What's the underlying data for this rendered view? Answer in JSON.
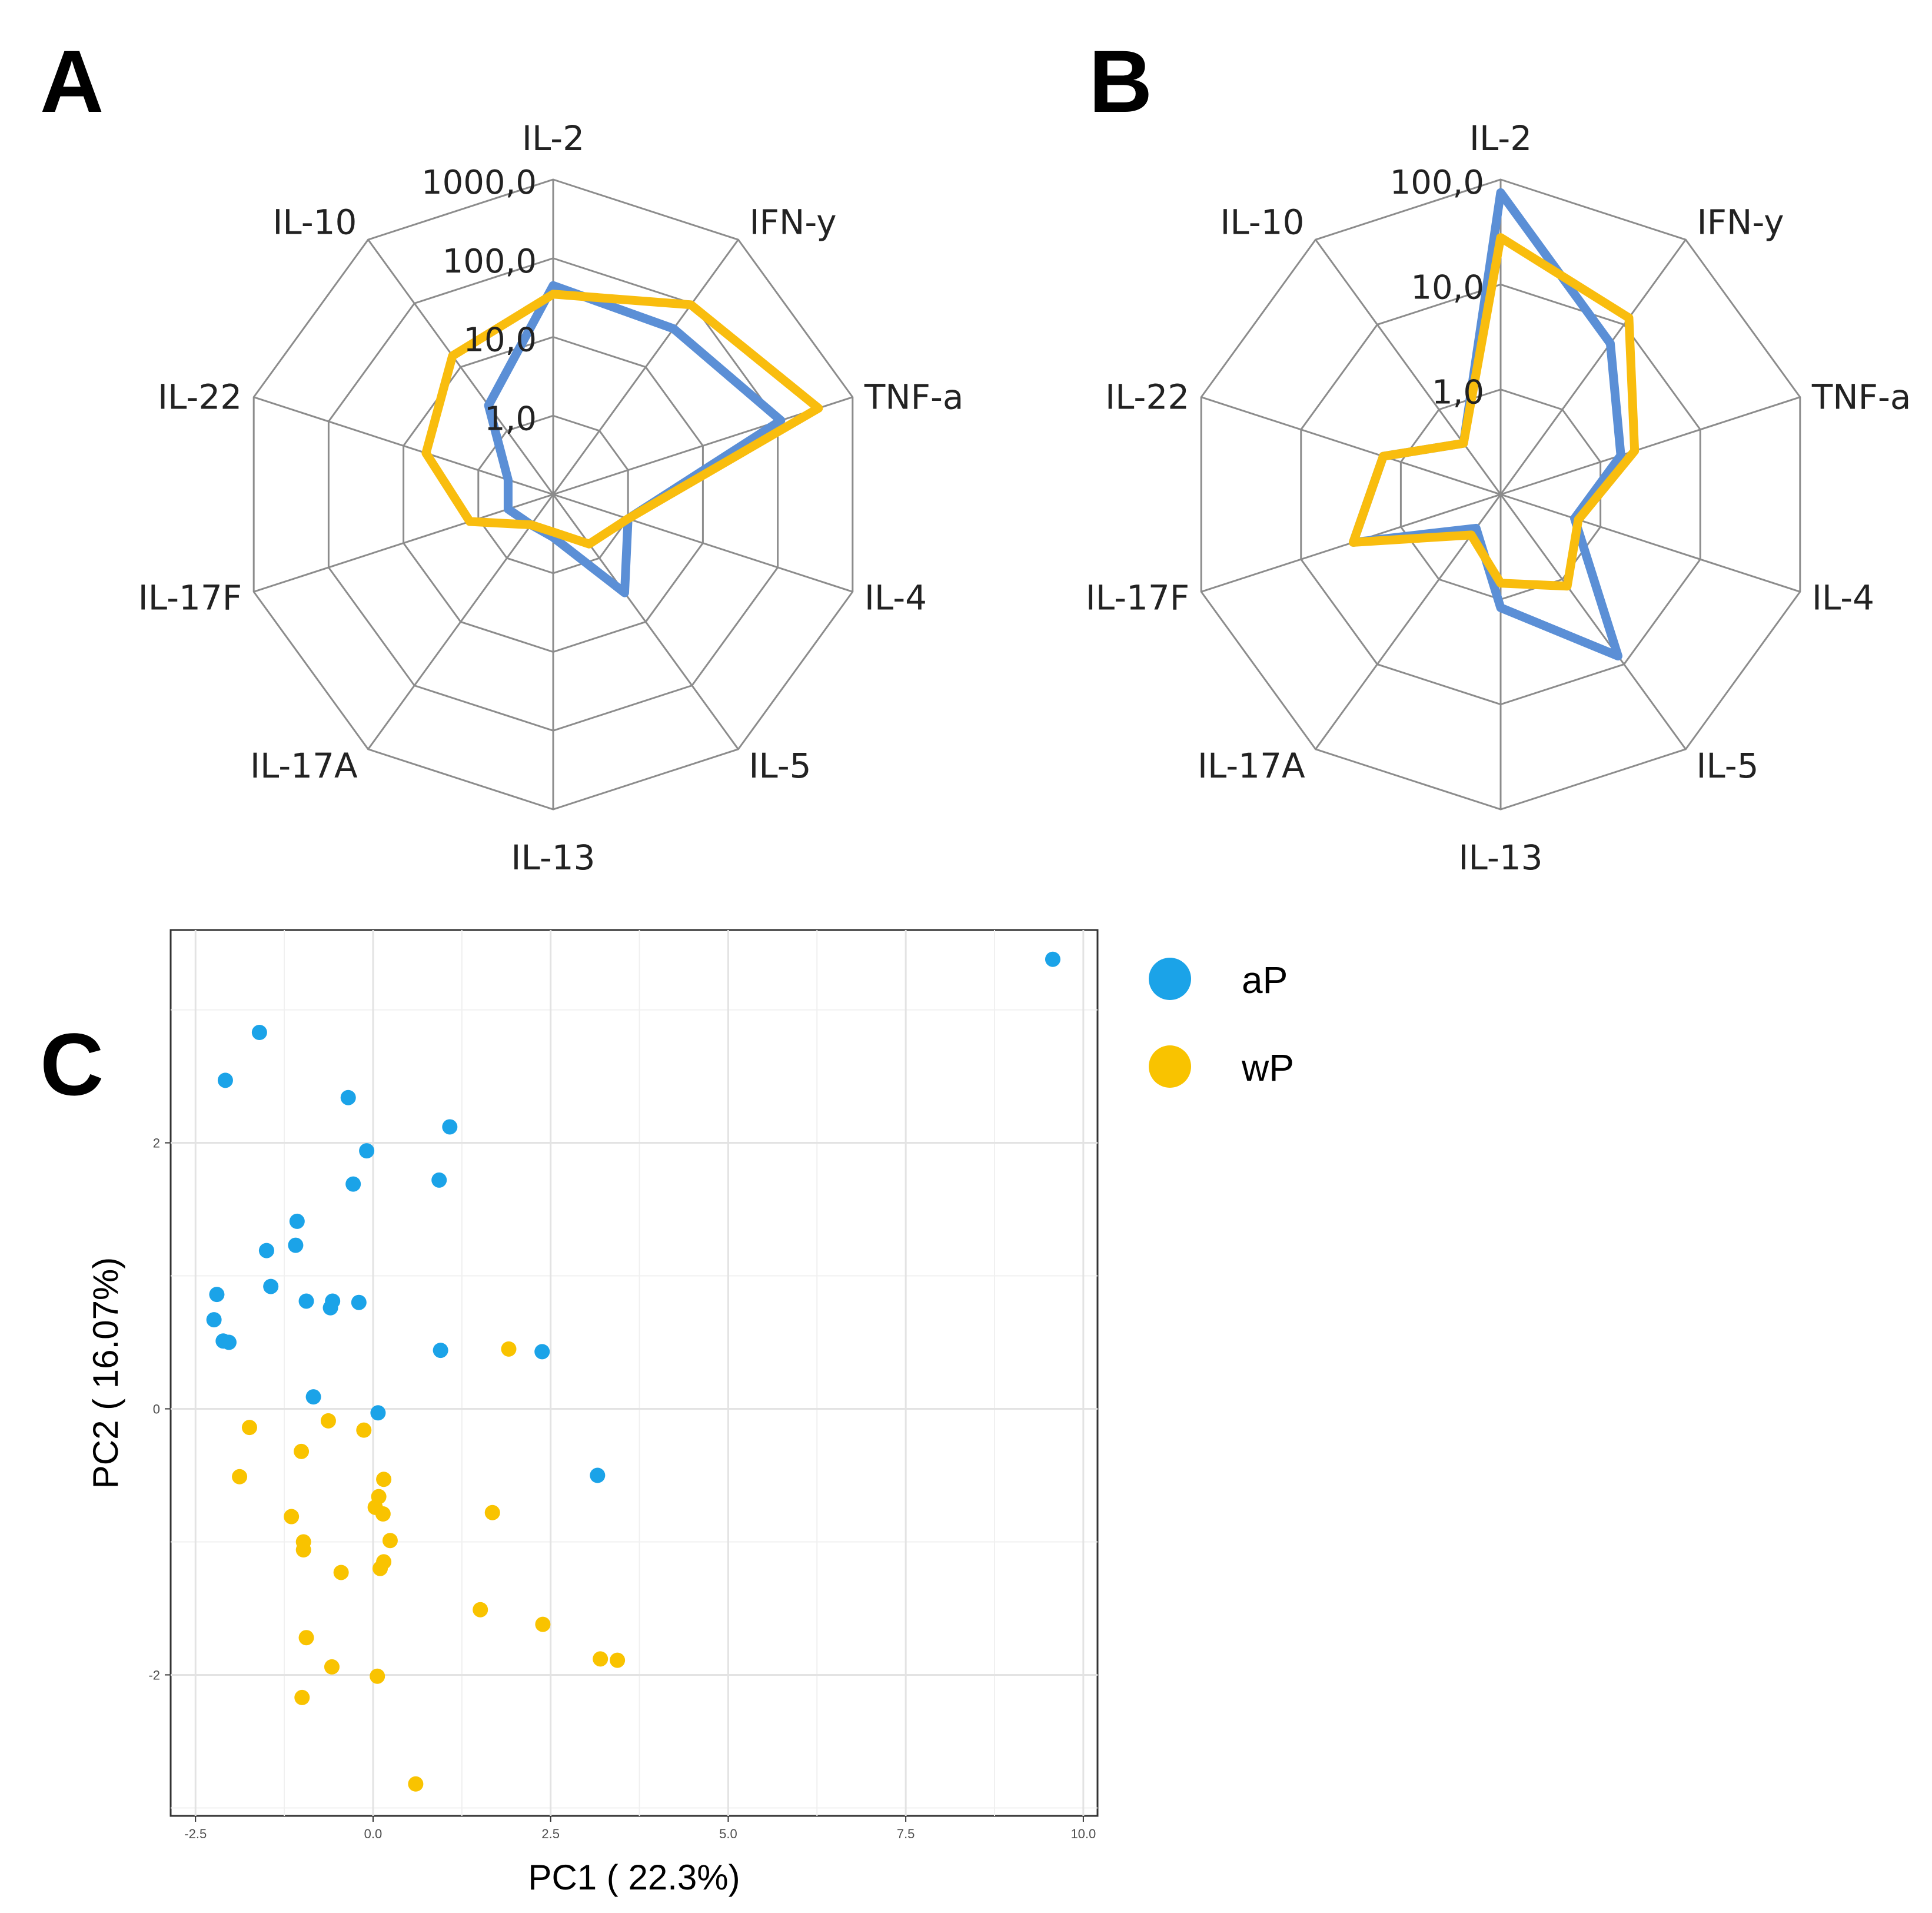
{
  "panels": {
    "a": "A",
    "b": "B",
    "c": "C"
  },
  "colors": {
    "aP": "#1ba3e8",
    "wP": "#f9c300",
    "radar_blue": "#5b8fd6",
    "radar_yellow": "#f9bd0e",
    "grid": "#8c8c8c"
  },
  "chart_data": [
    {
      "type": "radar",
      "panel": "A",
      "axes": [
        "IL-2",
        "IFN-y",
        "TNF-a",
        "IL-4",
        "IL-5",
        "IL-13",
        "IL-17A",
        "IL-17F",
        "IL-22",
        "IL-10"
      ],
      "tick_labels": [
        "1,0",
        "10,0",
        "100,0",
        "1000,0"
      ],
      "scale": "log10",
      "range": [
        0.1,
        1000
      ],
      "series": [
        {
          "name": "aP",
          "color": "radar_blue",
          "values": [
            45,
            40,
            110,
            1.0,
            3.5,
            0.35,
            0.3,
            0.4,
            0.4,
            2.5
          ]
        },
        {
          "name": "wP",
          "color": "radar_yellow",
          "values": [
            35,
            95,
            350,
            1.0,
            0.6,
            0.3,
            0.3,
            1.3,
            5,
            15
          ]
        }
      ]
    },
    {
      "type": "radar",
      "panel": "B",
      "axes": [
        "IL-2",
        "IFN-y",
        "TNF-a",
        "IL-4",
        "IL-5",
        "IL-13",
        "IL-17A",
        "IL-17F",
        "IL-22",
        "IL-10"
      ],
      "tick_labels": [
        "1,0",
        "10,0",
        "100,0"
      ],
      "scale": "log10",
      "range": [
        0.1,
        100
      ],
      "series": [
        {
          "name": "aP",
          "color": "radar_blue",
          "values": [
            75,
            6,
            1.6,
            0.55,
            8,
            1.2,
            0.25,
            3,
            1.5,
            0.4
          ]
        },
        {
          "name": "wP",
          "color": "radar_yellow",
          "values": [
            28,
            12,
            2.2,
            0.6,
            1.2,
            0.7,
            0.3,
            3,
            1.5,
            0.4
          ]
        }
      ]
    },
    {
      "type": "scatter",
      "panel": "C",
      "xlabel": "PC1 ( 22.3%)",
      "ylabel": "PC2 ( 16.07%)",
      "xlim": [
        -2.85,
        10.2
      ],
      "ylim": [
        -3.06,
        3.6
      ],
      "xticks": [
        -2.5,
        0,
        2.5,
        5,
        7.5,
        10
      ],
      "xtick_labels": [
        "-2.5",
        "0.0",
        "2.5",
        "5.0",
        "7.5",
        "10.0"
      ],
      "yticks": [
        -2,
        0,
        2
      ],
      "ytick_labels": [
        "-2",
        "0",
        "2"
      ],
      "grid": true,
      "legend": {
        "position": "top-right",
        "entries": [
          "aP",
          "wP"
        ]
      },
      "series": [
        {
          "name": "aP",
          "color": "aP",
          "points": [
            [
              9.57,
              3.38
            ],
            [
              -1.6,
              2.83
            ],
            [
              -2.08,
              2.47
            ],
            [
              -0.35,
              2.34
            ],
            [
              1.08,
              2.12
            ],
            [
              -0.09,
              1.94
            ],
            [
              -0.28,
              1.69
            ],
            [
              0.93,
              1.72
            ],
            [
              -1.07,
              1.41
            ],
            [
              -1.09,
              1.23
            ],
            [
              -1.5,
              1.19
            ],
            [
              -1.44,
              0.92
            ],
            [
              -2.2,
              0.86
            ],
            [
              -0.94,
              0.81
            ],
            [
              -0.57,
              0.81
            ],
            [
              -0.6,
              0.76
            ],
            [
              -0.2,
              0.8
            ],
            [
              -2.24,
              0.67
            ],
            [
              -2.11,
              0.51
            ],
            [
              -2.03,
              0.5
            ],
            [
              0.95,
              0.44
            ],
            [
              2.38,
              0.43
            ],
            [
              -0.84,
              0.09
            ],
            [
              0.07,
              -0.03
            ],
            [
              3.16,
              -0.5
            ]
          ]
        },
        {
          "name": "wP",
          "color": "wP",
          "points": [
            [
              1.91,
              0.45
            ],
            [
              -0.63,
              -0.09
            ],
            [
              -1.74,
              -0.14
            ],
            [
              -0.13,
              -0.16
            ],
            [
              -1.01,
              -0.32
            ],
            [
              -1.88,
              -0.51
            ],
            [
              0.15,
              -0.53
            ],
            [
              0.08,
              -0.66
            ],
            [
              -1.15,
              -0.81
            ],
            [
              0.03,
              -0.74
            ],
            [
              0.14,
              -0.79
            ],
            [
              1.68,
              -0.78
            ],
            [
              0.24,
              -0.99
            ],
            [
              -0.98,
              -1.0
            ],
            [
              -0.98,
              -1.06
            ],
            [
              0.15,
              -1.15
            ],
            [
              0.1,
              -1.2
            ],
            [
              -0.45,
              -1.23
            ],
            [
              1.51,
              -1.51
            ],
            [
              2.39,
              -1.62
            ],
            [
              -0.94,
              -1.72
            ],
            [
              3.2,
              -1.88
            ],
            [
              3.44,
              -1.89
            ],
            [
              -0.58,
              -1.94
            ],
            [
              0.06,
              -2.01
            ],
            [
              -1.0,
              -2.17
            ],
            [
              0.6,
              -2.82
            ]
          ]
        }
      ]
    }
  ]
}
